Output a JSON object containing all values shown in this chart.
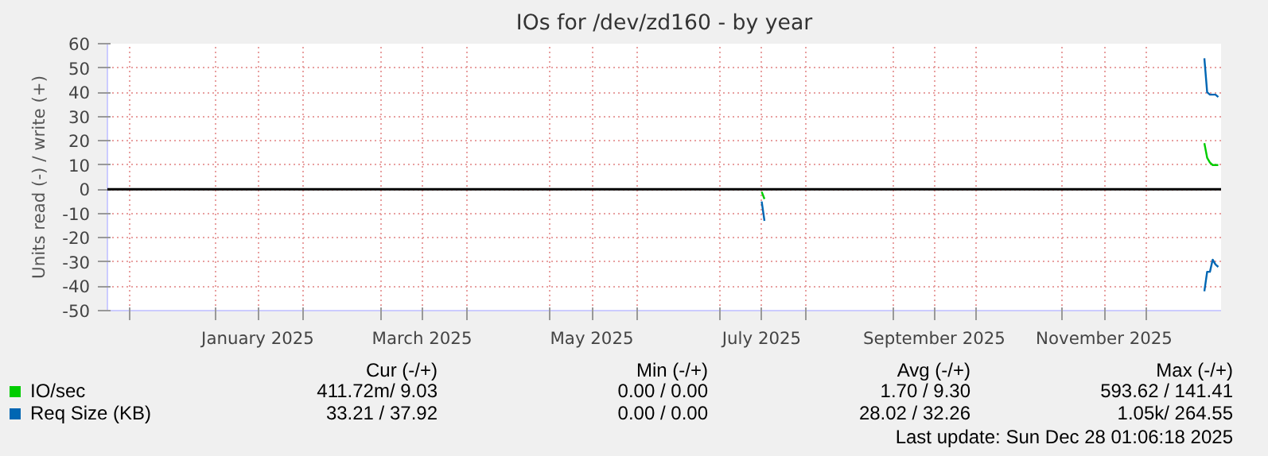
{
  "chart_data": {
    "type": "line",
    "title": "IOs for /dev/zd160 - by year",
    "ylabel": "Units read (-) / write (+)",
    "xlim": [
      "2024-11-23",
      "2025-12-28"
    ],
    "xticks": [
      {
        "value": "2024-12-01",
        "label": null
      },
      {
        "value": "2025-01-01",
        "label": null
      },
      {
        "value": "2025-01-16",
        "label": "January 2025"
      },
      {
        "value": "2025-02-01",
        "label": null
      },
      {
        "value": "2025-03-01",
        "label": null
      },
      {
        "value": "2025-03-16",
        "label": "March 2025"
      },
      {
        "value": "2025-04-01",
        "label": null
      },
      {
        "value": "2025-05-01",
        "label": null
      },
      {
        "value": "2025-05-16",
        "label": "May 2025"
      },
      {
        "value": "2025-06-01",
        "label": null
      },
      {
        "value": "2025-07-01",
        "label": null
      },
      {
        "value": "2025-07-16",
        "label": "July 2025"
      },
      {
        "value": "2025-08-01",
        "label": null
      },
      {
        "value": "2025-09-01",
        "label": null
      },
      {
        "value": "2025-09-16",
        "label": "September 2025"
      },
      {
        "value": "2025-10-01",
        "label": null
      },
      {
        "value": "2025-11-01",
        "label": null
      },
      {
        "value": "2025-11-16",
        "label": "November 2025"
      },
      {
        "value": "2025-12-01",
        "label": null
      }
    ],
    "ylim": [
      -50,
      60
    ],
    "yticks": [
      -50,
      -40,
      -30,
      -20,
      -10,
      0,
      10,
      20,
      30,
      40,
      50,
      60
    ],
    "grid": true,
    "legend": "bottom",
    "ref_lines": [
      {
        "axis": "y",
        "value": 0,
        "label": null,
        "color": "#000000"
      }
    ],
    "series": [
      {
        "name": "IO/sec",
        "color": "#00cc00",
        "x": [
          "2025-12-22",
          "2025-12-23",
          "2025-12-24",
          "2025-12-25",
          "2025-12-26",
          "2025-12-27"
        ],
        "values": [
          19,
          13,
          11,
          10,
          10,
          10
        ]
      },
      {
        "color": "#00cc00",
        "x": [
          "2025-07-16",
          "2025-07-17"
        ],
        "values": [
          -1,
          -4
        ]
      },
      {
        "name": "Req Size (KB)",
        "color": "#0066b3",
        "x": [
          "2025-12-22",
          "2025-12-23",
          "2025-12-24",
          "2025-12-25",
          "2025-12-26",
          "2025-12-27"
        ],
        "values": [
          54,
          40,
          39,
          39,
          39,
          38
        ]
      },
      {
        "color": "#0066b3",
        "x": [
          "2025-07-16",
          "2025-07-17",
          "2025-12-21",
          "2025-12-22",
          "2025-12-23",
          "2025-12-24",
          "2025-12-25",
          "2025-12-26",
          "2025-12-27"
        ],
        "values": [
          -5,
          -13,
          null,
          -42,
          -34,
          -34,
          -29,
          -31,
          -32
        ]
      }
    ],
    "annotations": [
      "Cur (-/+)",
      "Min (-/+)",
      "Avg (-/+)",
      "Max (-/+)",
      "411.72m/ 9.03",
      "0.00 / 0.00",
      "1.70 / 9.30",
      "593.62 / 141.41",
      "33.21 / 37.92",
      "0.00 / 0.00",
      "28.02 / 32.26",
      "1.05k/ 264.55",
      "Last update: Sun Dec 28 01:06:18 2025"
    ]
  }
}
